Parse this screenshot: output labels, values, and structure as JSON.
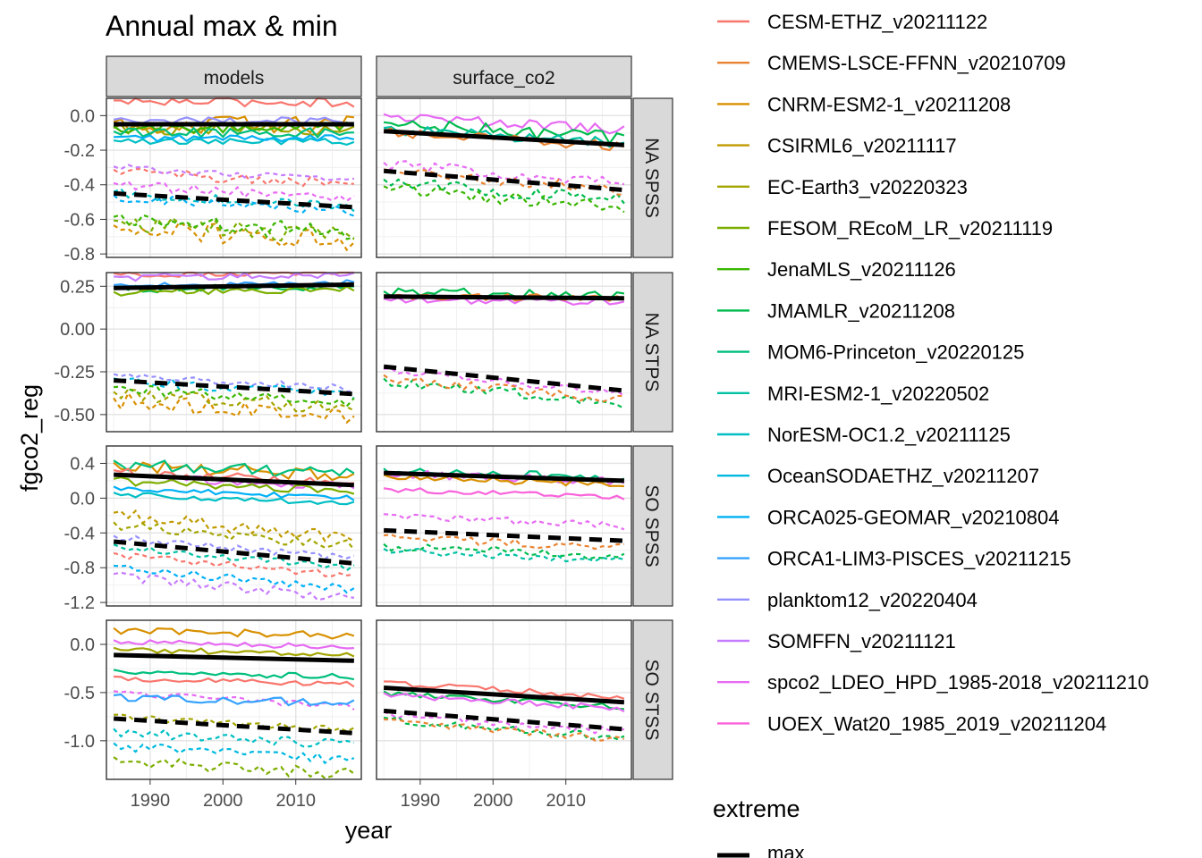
{
  "chart_data": {
    "type": "line",
    "title": "Annual max & min",
    "xlabel": "year",
    "ylabel": "fgco2_reg",
    "x_ticks": [
      1990,
      2000,
      2010
    ],
    "xlim": [
      1984,
      2019
    ],
    "columns": [
      "models",
      "surface_co2"
    ],
    "rows": [
      "NA SPSS",
      "NA STPS",
      "SO SPSS",
      "SO STSS"
    ],
    "row_scales": [
      {
        "ylim": [
          -0.82,
          0.1
        ],
        "ticks": [
          "0.0",
          "-0.2",
          "-0.4",
          "-0.6",
          "-0.8"
        ],
        "tick_values": [
          0,
          -0.2,
          -0.4,
          -0.6,
          -0.8
        ]
      },
      {
        "ylim": [
          -0.6,
          0.33
        ],
        "ticks": [
          "0.25",
          "0.00",
          "-0.25",
          "-0.50"
        ],
        "tick_values": [
          0.25,
          0,
          -0.25,
          -0.5
        ]
      },
      {
        "ylim": [
          -1.24,
          0.6
        ],
        "ticks": [
          "0.4",
          "0.0",
          "-0.4",
          "-0.8",
          "-1.2"
        ],
        "tick_values": [
          0.4,
          0,
          -0.4,
          -0.8,
          -1.2
        ]
      },
      {
        "ylim": [
          -1.4,
          0.25
        ],
        "ticks": [
          "0.0",
          "-0.5",
          "-1.0"
        ],
        "tick_values": [
          0,
          -0.5,
          -1.0
        ]
      }
    ],
    "legend_series": [
      {
        "name": "CESM-ETHZ_v20211122",
        "color": "#F8766D"
      },
      {
        "name": "CMEMS-LSCE-FFNN_v20210709",
        "color": "#EA8331"
      },
      {
        "name": "CNRM-ESM2-1_v20211208",
        "color": "#D89000"
      },
      {
        "name": "CSIRML6_v20211117",
        "color": "#C09B00"
      },
      {
        "name": "EC-Earth3_v20220323",
        "color": "#A3A500"
      },
      {
        "name": "FESOM_REcoM_LR_v20211119",
        "color": "#7CAE00"
      },
      {
        "name": "JenaMLS_v20211126",
        "color": "#39B600"
      },
      {
        "name": "JMAMLR_v20211208",
        "color": "#00BB4E"
      },
      {
        "name": "MOM6-Princeton_v20220125",
        "color": "#00BF7D"
      },
      {
        "name": "MRI-ESM2-1_v20220502",
        "color": "#00C1A3"
      },
      {
        "name": "NorESM-OC1.2_v20211125",
        "color": "#00BFC4"
      },
      {
        "name": "OceanSODAETHZ_v20211207",
        "color": "#00BAE0"
      },
      {
        "name": "ORCA025-GEOMAR_v20210804",
        "color": "#00B0F6"
      },
      {
        "name": "ORCA1-LIM3-PISCES_v20211215",
        "color": "#35A2FF"
      },
      {
        "name": "planktom12_v20220404",
        "color": "#9590FF"
      },
      {
        "name": "SOMFFN_v20211121",
        "color": "#C77CFF"
      },
      {
        "name": "spco2_LDEO_HPD_1985-2018_v20211210",
        "color": "#E76BF3"
      },
      {
        "name": "UOEX_Wat20_1985_2019_v20211204",
        "color": "#FA62DB"
      }
    ],
    "legend2": {
      "title": "extreme",
      "entries": [
        "max"
      ]
    },
    "trend_lines": [
      [
        {
          "max": [
            -0.05,
            -0.05
          ],
          "min": [
            -0.45,
            -0.53
          ]
        },
        {
          "max": [
            -0.09,
            -0.17
          ],
          "min": [
            -0.32,
            -0.43
          ]
        }
      ],
      [
        {
          "max": [
            0.24,
            0.26
          ],
          "min": [
            -0.3,
            -0.38
          ]
        },
        {
          "max": [
            0.19,
            0.18
          ],
          "min": [
            -0.22,
            -0.36
          ]
        }
      ],
      [
        {
          "max": [
            0.27,
            0.15
          ],
          "min": [
            -0.5,
            -0.75
          ]
        },
        {
          "max": [
            0.29,
            0.2
          ],
          "min": [
            -0.37,
            -0.49
          ]
        }
      ],
      [
        {
          "max": [
            -0.11,
            -0.17
          ],
          "min": [
            -0.77,
            -0.92
          ]
        },
        {
          "max": [
            -0.45,
            -0.6
          ],
          "min": [
            -0.69,
            -0.88
          ]
        }
      ]
    ],
    "series_bands": [
      [
        {
          "max": [
            {
              "c": 0,
              "v": 0.08,
              "a": 0.03
            },
            {
              "c": 2,
              "v": -0.05,
              "a": 0.05
            },
            {
              "c": 4,
              "v": -0.08,
              "a": 0.03
            },
            {
              "c": 6,
              "v": -0.07,
              "a": 0.03
            },
            {
              "c": 8,
              "v": -0.1,
              "a": 0.03
            },
            {
              "c": 10,
              "v": -0.15,
              "a": 0.02
            },
            {
              "c": 12,
              "v": -0.13,
              "a": 0.02
            },
            {
              "c": 14,
              "v": -0.03,
              "a": 0.02
            }
          ],
          "min": [
            {
              "c": 0,
              "v": -0.32,
              "a": 0.03
            },
            {
              "c": 2,
              "v": -0.65,
              "a": 0.06
            },
            {
              "c": 5,
              "v": -0.62,
              "a": 0.05
            },
            {
              "c": 6,
              "v": -0.6,
              "a": 0.05
            },
            {
              "c": 10,
              "v": -0.45,
              "a": 0.03
            },
            {
              "c": 12,
              "v": -0.47,
              "a": 0.03
            },
            {
              "c": 15,
              "v": -0.3,
              "a": 0.02
            },
            {
              "c": 16,
              "v": -0.4,
              "a": 0.03
            }
          ]
        },
        {
          "max": [
            {
              "c": 16,
              "v": 0.0,
              "a": 0.03
            },
            {
              "c": 7,
              "v": -0.05,
              "a": 0.04
            },
            {
              "c": 9,
              "v": -0.08,
              "a": 0.03
            },
            {
              "c": 1,
              "v": -0.1,
              "a": 0.03
            }
          ],
          "min": [
            {
              "c": 16,
              "v": -0.28,
              "a": 0.03
            },
            {
              "c": 7,
              "v": -0.38,
              "a": 0.04
            },
            {
              "c": 6,
              "v": -0.42,
              "a": 0.04
            },
            {
              "c": 1,
              "v": -0.32,
              "a": 0.03
            }
          ]
        }
      ],
      [
        {
          "max": [
            {
              "c": 0,
              "v": 0.32,
              "a": 0.02
            },
            {
              "c": 15,
              "v": 0.3,
              "a": 0.02
            },
            {
              "c": 13,
              "v": 0.25,
              "a": 0.02
            },
            {
              "c": 7,
              "v": 0.23,
              "a": 0.02
            },
            {
              "c": 5,
              "v": 0.21,
              "a": 0.02
            }
          ],
          "min": [
            {
              "c": 2,
              "v": -0.42,
              "a": 0.05
            },
            {
              "c": 4,
              "v": -0.38,
              "a": 0.04
            },
            {
              "c": 14,
              "v": -0.27,
              "a": 0.02
            },
            {
              "c": 11,
              "v": -0.3,
              "a": 0.03
            },
            {
              "c": 6,
              "v": -0.35,
              "a": 0.03
            }
          ]
        },
        {
          "max": [
            {
              "c": 7,
              "v": 0.21,
              "a": 0.03
            },
            {
              "c": 16,
              "v": 0.17,
              "a": 0.02
            },
            {
              "c": 1,
              "v": 0.19,
              "a": 0.02
            }
          ],
          "min": [
            {
              "c": 16,
              "v": -0.24,
              "a": 0.02
            },
            {
              "c": 7,
              "v": -0.3,
              "a": 0.03
            },
            {
              "c": 1,
              "v": -0.28,
              "a": 0.03
            }
          ]
        }
      ],
      [
        {
          "max": [
            {
              "c": 2,
              "v": 0.38,
              "a": 0.07
            },
            {
              "c": 8,
              "v": 0.4,
              "a": 0.08
            },
            {
              "c": 0,
              "v": 0.3,
              "a": 0.05
            },
            {
              "c": 16,
              "v": 0.25,
              "a": 0.05
            },
            {
              "c": 5,
              "v": 0.2,
              "a": 0.05
            },
            {
              "c": 12,
              "v": 0.12,
              "a": 0.03
            },
            {
              "c": 10,
              "v": 0.05,
              "a": 0.03
            }
          ],
          "min": [
            {
              "c": 3,
              "v": -0.2,
              "a": 0.08
            },
            {
              "c": 4,
              "v": -0.3,
              "a": 0.06
            },
            {
              "c": 14,
              "v": -0.45,
              "a": 0.04
            },
            {
              "c": 9,
              "v": -0.55,
              "a": 0.04
            },
            {
              "c": 0,
              "v": -0.65,
              "a": 0.04
            },
            {
              "c": 12,
              "v": -0.8,
              "a": 0.05
            },
            {
              "c": 15,
              "v": -0.9,
              "a": 0.06
            }
          ]
        },
        {
          "max": [
            {
              "c": 8,
              "v": 0.32,
              "a": 0.05
            },
            {
              "c": 16,
              "v": 0.28,
              "a": 0.05
            },
            {
              "c": 2,
              "v": 0.25,
              "a": 0.04
            },
            {
              "c": 17,
              "v": 0.1,
              "a": 0.03
            }
          ],
          "min": [
            {
              "c": 16,
              "v": -0.2,
              "a": 0.04
            },
            {
              "c": 1,
              "v": -0.45,
              "a": 0.05
            },
            {
              "c": 7,
              "v": -0.55,
              "a": 0.05
            },
            {
              "c": 9,
              "v": -0.6,
              "a": 0.04
            }
          ]
        }
      ],
      [
        {
          "max": [
            {
              "c": 2,
              "v": 0.15,
              "a": 0.04
            },
            {
              "c": 16,
              "v": 0.03,
              "a": 0.03
            },
            {
              "c": 4,
              "v": -0.05,
              "a": 0.03
            },
            {
              "c": 8,
              "v": -0.28,
              "a": 0.03
            },
            {
              "c": 0,
              "v": -0.35,
              "a": 0.03
            },
            {
              "c": 13,
              "v": -0.55,
              "a": 0.04
            }
          ],
          "min": [
            {
              "c": 16,
              "v": -0.5,
              "a": 0.03
            },
            {
              "c": 4,
              "v": -0.75,
              "a": 0.04
            },
            {
              "c": 10,
              "v": -0.9,
              "a": 0.05
            },
            {
              "c": 11,
              "v": -1.05,
              "a": 0.05
            },
            {
              "c": 5,
              "v": -1.2,
              "a": 0.06
            }
          ]
        },
        {
          "max": [
            {
              "c": 0,
              "v": -0.4,
              "a": 0.03
            },
            {
              "c": 7,
              "v": -0.5,
              "a": 0.03
            },
            {
              "c": 16,
              "v": -0.52,
              "a": 0.03
            }
          ],
          "min": [
            {
              "c": 16,
              "v": -0.72,
              "a": 0.04
            },
            {
              "c": 7,
              "v": -0.78,
              "a": 0.04
            },
            {
              "c": 1,
              "v": -0.8,
              "a": 0.04
            }
          ]
        }
      ]
    ]
  }
}
